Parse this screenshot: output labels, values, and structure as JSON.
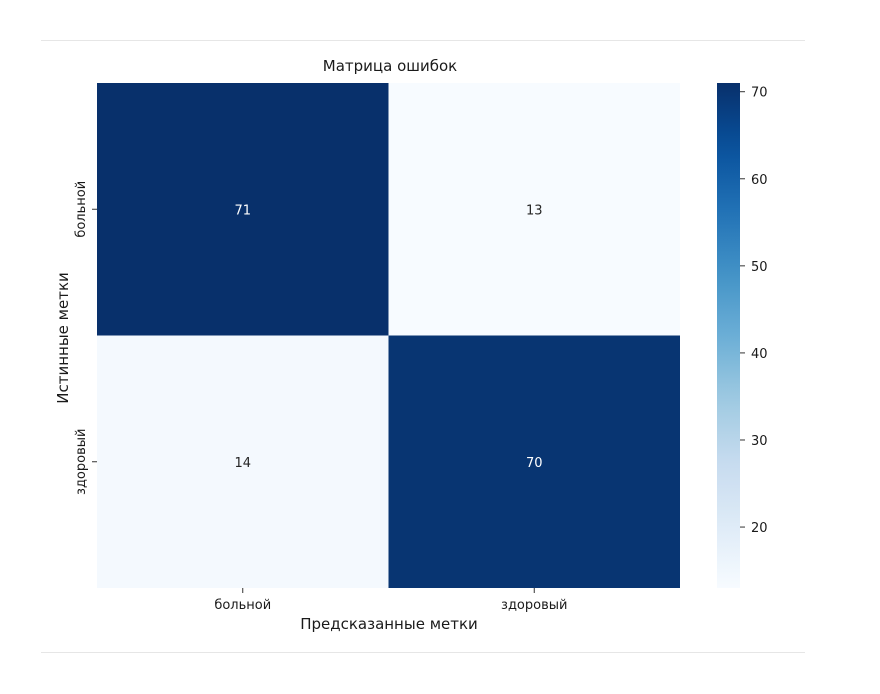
{
  "chart_data": {
    "type": "heatmap",
    "title": "Матрица ошибок",
    "xlabel": "Предсказанные метки",
    "ylabel": "Истинные метки",
    "x_categories": [
      "больной",
      "здоровый"
    ],
    "y_categories": [
      "больной",
      "здоровый"
    ],
    "values": [
      [
        71,
        13
      ],
      [
        14,
        70
      ]
    ],
    "colormap": "Blues",
    "colorbar": {
      "range": [
        13,
        71
      ],
      "ticks": [
        20,
        30,
        40,
        50,
        60,
        70
      ]
    },
    "colors": {
      "low": "#f7fbff",
      "high": "#08306b",
      "text_on_dark": "#ffffff",
      "text_on_light": "#262626"
    }
  }
}
